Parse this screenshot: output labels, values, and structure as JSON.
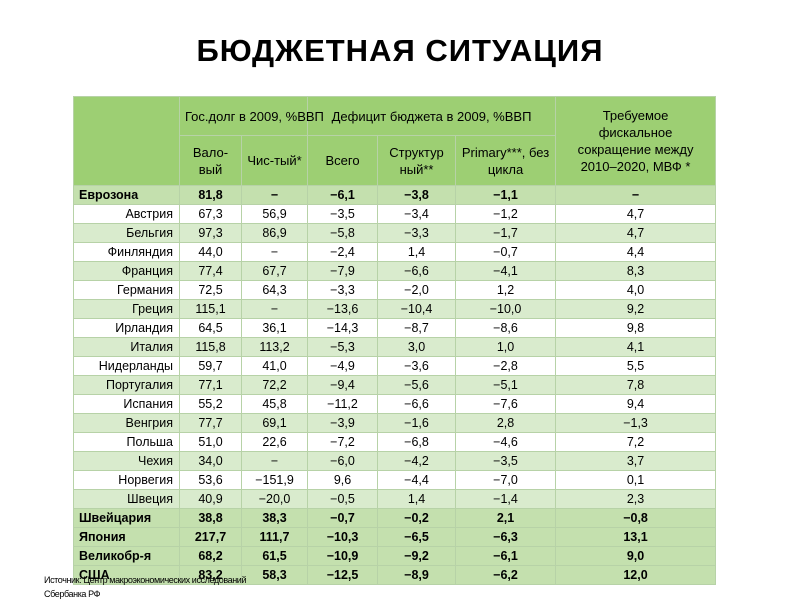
{
  "title": "БЮДЖЕТНАЯ СИТУАЦИЯ",
  "headers": {
    "debt_group": "Гос.долг в 2009, %ВВП",
    "deficit_group": "Дефицит бюджета в 2009, %ВВП",
    "fiscal": "Требуемое фискальное сокращение между 2010–2020, МВФ *",
    "gross": "Вало-вый",
    "net": "Чис-тый*",
    "total": "Всего",
    "structural": "Структур ный**",
    "primary": "Primary***, без цикла"
  },
  "rows": [
    {
      "country": "Еврозона",
      "gross": "81,8",
      "net": "−",
      "total": "−6,1",
      "structural": "−3,8",
      "primary": "−1,1",
      "fiscal": "−",
      "style": "major"
    },
    {
      "country": "Австрия",
      "gross": "67,3",
      "net": "56,9",
      "total": "−3,5",
      "structural": "−3,4",
      "primary": "−1,2",
      "fiscal": "4,7",
      "style": "odd"
    },
    {
      "country": "Бельгия",
      "gross": "97,3",
      "net": "86,9",
      "total": "−5,8",
      "structural": "−3,3",
      "primary": "−1,7",
      "fiscal": "4,7",
      "style": "even"
    },
    {
      "country": "Финляндия",
      "gross": "44,0",
      "net": "−",
      "total": "−2,4",
      "structural": "1,4",
      "primary": "−0,7",
      "fiscal": "4,4",
      "style": "odd"
    },
    {
      "country": "Франция",
      "gross": "77,4",
      "net": "67,7",
      "total": "−7,9",
      "structural": "−6,6",
      "primary": "−4,1",
      "fiscal": "8,3",
      "style": "even"
    },
    {
      "country": "Германия",
      "gross": "72,5",
      "net": "64,3",
      "total": "−3,3",
      "structural": "−2,0",
      "primary": "1,2",
      "fiscal": "4,0",
      "style": "odd"
    },
    {
      "country": "Греция",
      "gross": "115,1",
      "net": "−",
      "total": "−13,6",
      "structural": "−10,4",
      "primary": "−10,0",
      "fiscal": "9,2",
      "style": "even"
    },
    {
      "country": "Ирландия",
      "gross": "64,5",
      "net": "36,1",
      "total": "−14,3",
      "structural": "−8,7",
      "primary": "−8,6",
      "fiscal": "9,8",
      "style": "odd"
    },
    {
      "country": "Италия",
      "gross": "115,8",
      "net": "113,2",
      "total": "−5,3",
      "structural": "3,0",
      "primary": "1,0",
      "fiscal": "4,1",
      "style": "even"
    },
    {
      "country": "Нидерланды",
      "gross": "59,7",
      "net": "41,0",
      "total": "−4,9",
      "structural": "−3,6",
      "primary": "−2,8",
      "fiscal": "5,5",
      "style": "odd"
    },
    {
      "country": "Португалия",
      "gross": "77,1",
      "net": "72,2",
      "total": "−9,4",
      "structural": "−5,6",
      "primary": "−5,1",
      "fiscal": "7,8",
      "style": "even"
    },
    {
      "country": "Испания",
      "gross": "55,2",
      "net": "45,8",
      "total": "−11,2",
      "structural": "−6,6",
      "primary": "−7,6",
      "fiscal": "9,4",
      "style": "odd"
    },
    {
      "country": "Венгрия",
      "gross": "77,7",
      "net": "69,1",
      "total": "−3,9",
      "structural": "−1,6",
      "primary": "2,8",
      "fiscal": "−1,3",
      "style": "even"
    },
    {
      "country": "Польша",
      "gross": "51,0",
      "net": "22,6",
      "total": "−7,2",
      "structural": "−6,8",
      "primary": "−4,6",
      "fiscal": "7,2",
      "style": "odd"
    },
    {
      "country": "Чехия",
      "gross": "34,0",
      "net": "−",
      "total": "−6,0",
      "structural": "−4,2",
      "primary": "−3,5",
      "fiscal": "3,7",
      "style": "even"
    },
    {
      "country": "Норвегия",
      "gross": "53,6",
      "net": "−151,9",
      "total": "9,6",
      "structural": "−4,4",
      "primary": "−7,0",
      "fiscal": "0,1",
      "style": "odd"
    },
    {
      "country": "Швеция",
      "gross": "40,9",
      "net": "−20,0",
      "total": "−0,5",
      "structural": "1,4",
      "primary": "−1,4",
      "fiscal": "2,3",
      "style": "even"
    },
    {
      "country": "Швейцария",
      "gross": "38,8",
      "net": "38,3",
      "total": "−0,7",
      "structural": "−0,2",
      "primary": "2,1",
      "fiscal": "−0,8",
      "style": "major"
    },
    {
      "country": "Япония",
      "gross": "217,7",
      "net": "111,7",
      "total": "−10,3",
      "structural": "−6,5",
      "primary": "−6,3",
      "fiscal": "13,1",
      "style": "major"
    },
    {
      "country": "Великобр-я",
      "gross": "68,2",
      "net": "61,5",
      "total": "−10,9",
      "structural": "−9,2",
      "primary": "−6,1",
      "fiscal": "9,0",
      "style": "major"
    },
    {
      "country": "США",
      "gross": "83,2",
      "net": "58,3",
      "total": "−12,5",
      "structural": "−8,9",
      "primary": "−6,2",
      "fiscal": "12,0",
      "style": "major"
    }
  ],
  "source": {
    "line1": "Источник: Центр макроэкономических исследований",
    "line2": "Сбербанка РФ"
  }
}
